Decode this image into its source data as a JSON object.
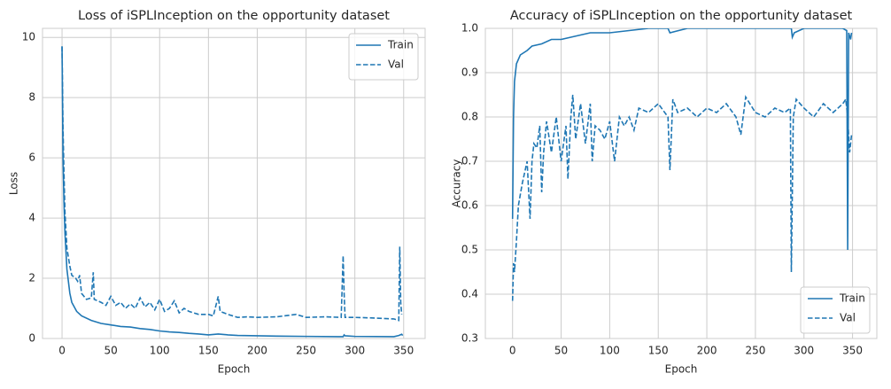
{
  "chart_data": [
    {
      "type": "line",
      "title": "Loss of iSPLInception on the opportunity dataset",
      "x_label": "Epoch",
      "y_label": "Loss",
      "xlim": [
        -20,
        372
      ],
      "ylim": [
        0,
        10.3
      ],
      "xticks": [
        0,
        50,
        100,
        150,
        200,
        250,
        300,
        350
      ],
      "yticks": [
        0,
        2,
        4,
        6,
        8,
        10
      ],
      "grid": true,
      "legend": "upper right",
      "series": [
        {
          "name": "Train",
          "color": "#1f77b4",
          "linestyle": "solid",
          "x": [
            0,
            1,
            2,
            3,
            5,
            8,
            10,
            15,
            20,
            30,
            40,
            50,
            60,
            70,
            80,
            90,
            100,
            110,
            120,
            130,
            140,
            150,
            160,
            170,
            180,
            200,
            220,
            250,
            288,
            289,
            290,
            300,
            340,
            345,
            348,
            349
          ],
          "values": [
            9.7,
            6,
            4.5,
            3.5,
            2.3,
            1.5,
            1.2,
            0.9,
            0.75,
            0.6,
            0.5,
            0.45,
            0.4,
            0.38,
            0.33,
            0.3,
            0.25,
            0.22,
            0.2,
            0.17,
            0.15,
            0.12,
            0.15,
            0.12,
            0.1,
            0.09,
            0.08,
            0.07,
            0.06,
            0.12,
            0.09,
            0.07,
            0.06,
            0.1,
            0.14,
            0.1
          ]
        },
        {
          "name": "Val",
          "color": "#1f77b4",
          "linestyle": "dashed",
          "x": [
            0,
            1,
            2,
            3,
            5,
            8,
            10,
            14,
            16,
            18,
            20,
            25,
            30,
            32,
            33,
            40,
            45,
            50,
            55,
            60,
            65,
            70,
            75,
            80,
            85,
            90,
            95,
            100,
            105,
            110,
            115,
            120,
            125,
            130,
            140,
            150,
            155,
            160,
            162,
            170,
            180,
            190,
            200,
            220,
            240,
            250,
            270,
            286,
            288,
            289,
            290,
            300,
            320,
            340,
            345,
            346,
            347,
            348
          ],
          "values": [
            9.7,
            7,
            5.5,
            4.2,
            3,
            2.4,
            2.1,
            2.0,
            1.9,
            2.1,
            1.5,
            1.3,
            1.35,
            2.2,
            1.3,
            1.2,
            1.1,
            1.4,
            1.1,
            1.2,
            1.0,
            1.15,
            1.0,
            1.35,
            1.05,
            1.2,
            0.95,
            1.3,
            0.9,
            1.0,
            1.25,
            0.85,
            1.0,
            0.9,
            0.8,
            0.8,
            0.75,
            1.4,
            0.9,
            0.8,
            0.7,
            0.72,
            0.7,
            0.72,
            0.8,
            0.7,
            0.72,
            0.7,
            2.75,
            1.5,
            0.7,
            0.7,
            0.68,
            0.65,
            0.6,
            3.05,
            1.2,
            0.8
          ]
        }
      ]
    },
    {
      "type": "line",
      "title": "Accuracy of iSPLInception on the opportunity dataset",
      "x_label": "Epoch",
      "y_label": "Accuracy",
      "xlim": [
        -28,
        375
      ],
      "ylim": [
        0.3,
        1.0
      ],
      "xticks": [
        0,
        50,
        100,
        150,
        200,
        250,
        300,
        350
      ],
      "yticks": [
        0.3,
        0.4,
        0.5,
        0.6,
        0.7,
        0.8,
        0.9,
        {
          "value": 1,
          "label": "1.0"
        }
      ],
      "grid": true,
      "legend": "lower right",
      "series": [
        {
          "name": "Train",
          "color": "#1f77b4",
          "linestyle": "solid",
          "x": [
            0,
            1,
            2,
            4,
            8,
            15,
            20,
            30,
            40,
            50,
            60,
            70,
            80,
            100,
            120,
            140,
            160,
            162,
            180,
            200,
            250,
            287,
            288,
            290,
            300,
            340,
            344,
            345,
            346,
            348,
            349
          ],
          "values": [
            0.57,
            0.8,
            0.88,
            0.92,
            0.94,
            0.95,
            0.96,
            0.965,
            0.975,
            0.975,
            0.98,
            0.985,
            0.99,
            0.99,
            0.995,
            1,
            1,
            0.99,
            1,
            1,
            1,
            1,
            0.98,
            0.99,
            1,
            1,
            0.995,
            0.5,
            0.99,
            0.975,
            0.99
          ]
        },
        {
          "name": "Val",
          "color": "#1f77b4",
          "linestyle": "dashed",
          "x": [
            0,
            1,
            2,
            4,
            6,
            10,
            15,
            18,
            20,
            22,
            25,
            28,
            30,
            32,
            35,
            40,
            45,
            50,
            55,
            57,
            60,
            62,
            65,
            70,
            75,
            80,
            82,
            85,
            90,
            95,
            100,
            105,
            110,
            115,
            120,
            125,
            130,
            140,
            150,
            160,
            162,
            165,
            170,
            180,
            190,
            200,
            210,
            220,
            230,
            235,
            240,
            250,
            260,
            270,
            280,
            286,
            287,
            289,
            292,
            300,
            310,
            320,
            330,
            340,
            343,
            345,
            347,
            349
          ],
          "values": [
            0.385,
            0.47,
            0.45,
            0.52,
            0.6,
            0.65,
            0.7,
            0.57,
            0.7,
            0.74,
            0.73,
            0.78,
            0.63,
            0.72,
            0.79,
            0.72,
            0.8,
            0.7,
            0.78,
            0.66,
            0.8,
            0.85,
            0.75,
            0.83,
            0.74,
            0.83,
            0.7,
            0.78,
            0.77,
            0.75,
            0.79,
            0.7,
            0.8,
            0.78,
            0.8,
            0.77,
            0.82,
            0.81,
            0.83,
            0.8,
            0.68,
            0.84,
            0.81,
            0.82,
            0.8,
            0.82,
            0.81,
            0.83,
            0.8,
            0.76,
            0.845,
            0.81,
            0.8,
            0.82,
            0.81,
            0.82,
            0.45,
            0.8,
            0.84,
            0.82,
            0.8,
            0.83,
            0.81,
            0.83,
            0.84,
            0.8,
            0.72,
            0.76
          ]
        }
      ]
    }
  ]
}
